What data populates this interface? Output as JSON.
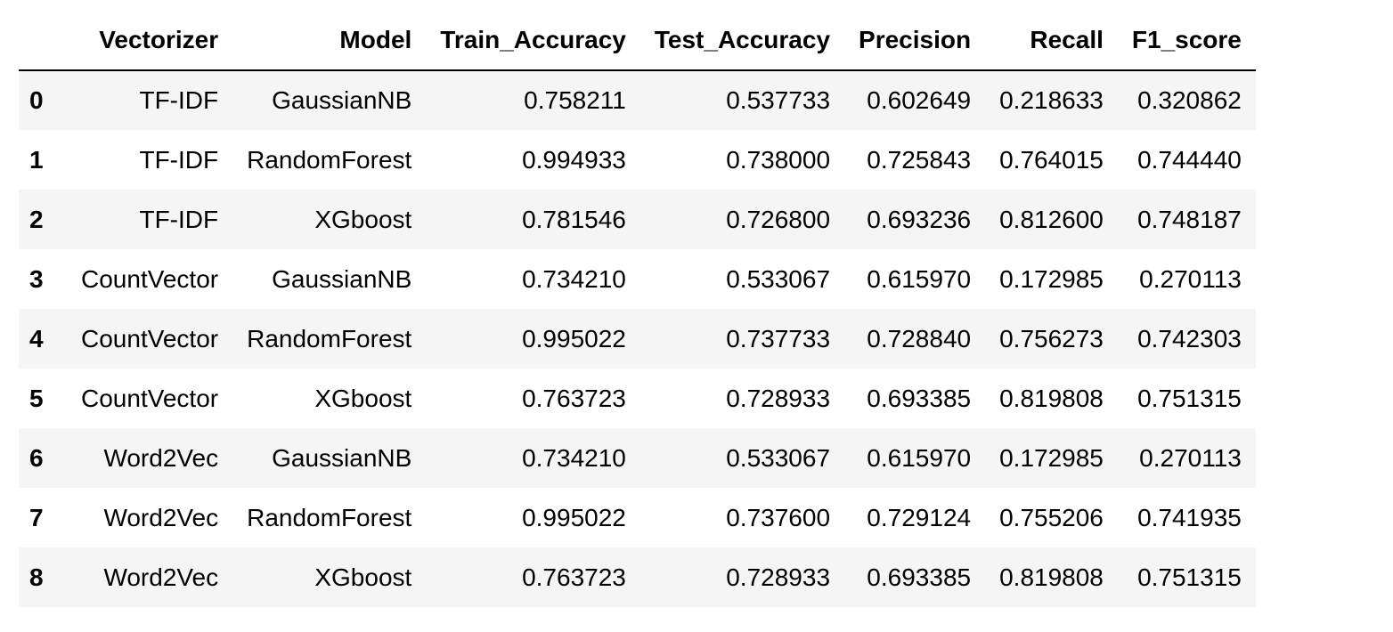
{
  "table": {
    "columns": [
      "",
      "Vectorizer",
      "Model",
      "Train_Accuracy",
      "Test_Accuracy",
      "Precision",
      "Recall",
      "F1_score"
    ],
    "rows": [
      [
        "0",
        "TF-IDF",
        "GaussianNB",
        "0.758211",
        "0.537733",
        "0.602649",
        "0.218633",
        "0.320862"
      ],
      [
        "1",
        "TF-IDF",
        "RandomForest",
        "0.994933",
        "0.738000",
        "0.725843",
        "0.764015",
        "0.744440"
      ],
      [
        "2",
        "TF-IDF",
        "XGboost",
        "0.781546",
        "0.726800",
        "0.693236",
        "0.812600",
        "0.748187"
      ],
      [
        "3",
        "CountVector",
        "GaussianNB",
        "0.734210",
        "0.533067",
        "0.615970",
        "0.172985",
        "0.270113"
      ],
      [
        "4",
        "CountVector",
        "RandomForest",
        "0.995022",
        "0.737733",
        "0.728840",
        "0.756273",
        "0.742303"
      ],
      [
        "5",
        "CountVector",
        "XGboost",
        "0.763723",
        "0.728933",
        "0.693385",
        "0.819808",
        "0.751315"
      ],
      [
        "6",
        "Word2Vec",
        "GaussianNB",
        "0.734210",
        "0.533067",
        "0.615970",
        "0.172985",
        "0.270113"
      ],
      [
        "7",
        "Word2Vec",
        "RandomForest",
        "0.995022",
        "0.737600",
        "0.729124",
        "0.755206",
        "0.741935"
      ],
      [
        "8",
        "Word2Vec",
        "XGboost",
        "0.763723",
        "0.728933",
        "0.693385",
        "0.819808",
        "0.751315"
      ]
    ]
  }
}
